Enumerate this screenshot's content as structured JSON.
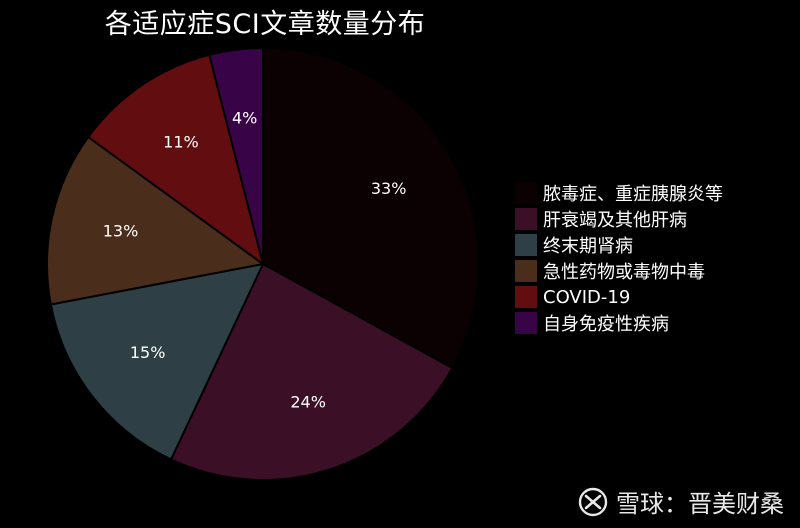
{
  "chart_data": {
    "type": "pie",
    "title": "各适应症SCI文章数量分布",
    "categories": [
      "脓毒症、重症胰腺炎等",
      "肝衰竭及其他肝病",
      "终末期肾病",
      "急性药物或毒物中毒",
      "COVID-19",
      "自身免疫性疾病"
    ],
    "values": [
      33,
      24,
      15,
      13,
      11,
      4
    ],
    "data_labels": [
      "33%",
      "24%",
      "15%",
      "13%",
      "11%",
      "4%"
    ],
    "colors": [
      "#0b0103",
      "#3b0f26",
      "#2e4045",
      "#4a2d1a",
      "#620d0f",
      "#390447"
    ],
    "start_angle_deg": 0,
    "direction": "clockwise",
    "legend_position": "right"
  },
  "watermark": {
    "text": "雪球：晋美财桑",
    "icon": "xueqiu-logo-icon"
  }
}
